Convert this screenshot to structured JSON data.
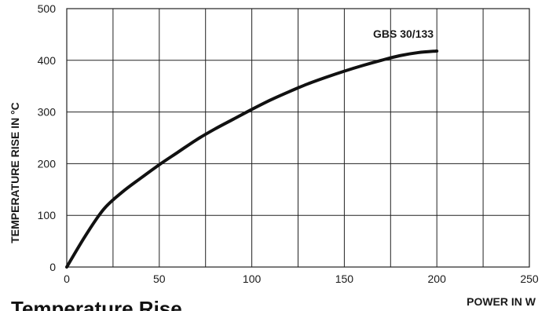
{
  "chart_data": {
    "type": "line",
    "title": "Temperature Rise",
    "xlabel": "POWER IN W",
    "ylabel": "TEMPERATURE RISE IN °C",
    "xlim": [
      0,
      250
    ],
    "ylim": [
      0,
      500
    ],
    "x_ticks": [
      "0",
      "50",
      "100",
      "150",
      "200",
      "250"
    ],
    "y_ticks": [
      "0",
      "100",
      "200",
      "300",
      "400",
      "500"
    ],
    "grid": true,
    "series": [
      {
        "name": "GBS 30/133",
        "x": [
          0,
          10,
          20,
          30,
          40,
          50,
          60,
          70,
          80,
          90,
          100,
          110,
          120,
          130,
          140,
          150,
          160,
          170,
          180,
          190,
          200
        ],
        "y": [
          0,
          60,
          112,
          145,
          172,
          198,
          222,
          246,
          267,
          286,
          305,
          323,
          339,
          354,
          367,
          379,
          390,
          400,
          409,
          415,
          418
        ]
      }
    ]
  },
  "colors": {
    "line": "#111111",
    "grid": "#222222",
    "background": "#ffffff"
  }
}
